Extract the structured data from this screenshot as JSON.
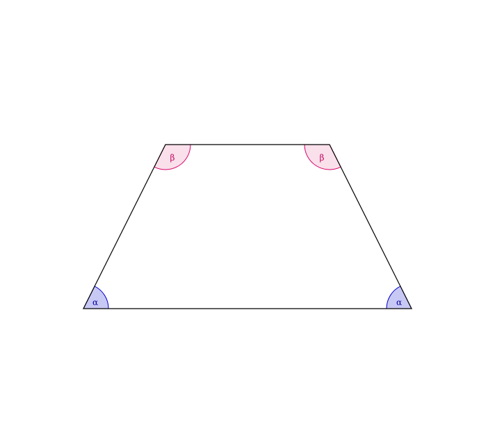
{
  "figure": {
    "shape": "isosceles-trapezoid",
    "outline_color": "#000000"
  },
  "angles": {
    "alpha": {
      "symbol": "α",
      "fill": "#c8c8f5",
      "stroke": "#0000cc",
      "text_color": "#0000a0"
    },
    "beta": {
      "symbol": "β",
      "fill": "#fae0ea",
      "stroke": "#d6006a",
      "text_color": "#c0005a"
    }
  }
}
